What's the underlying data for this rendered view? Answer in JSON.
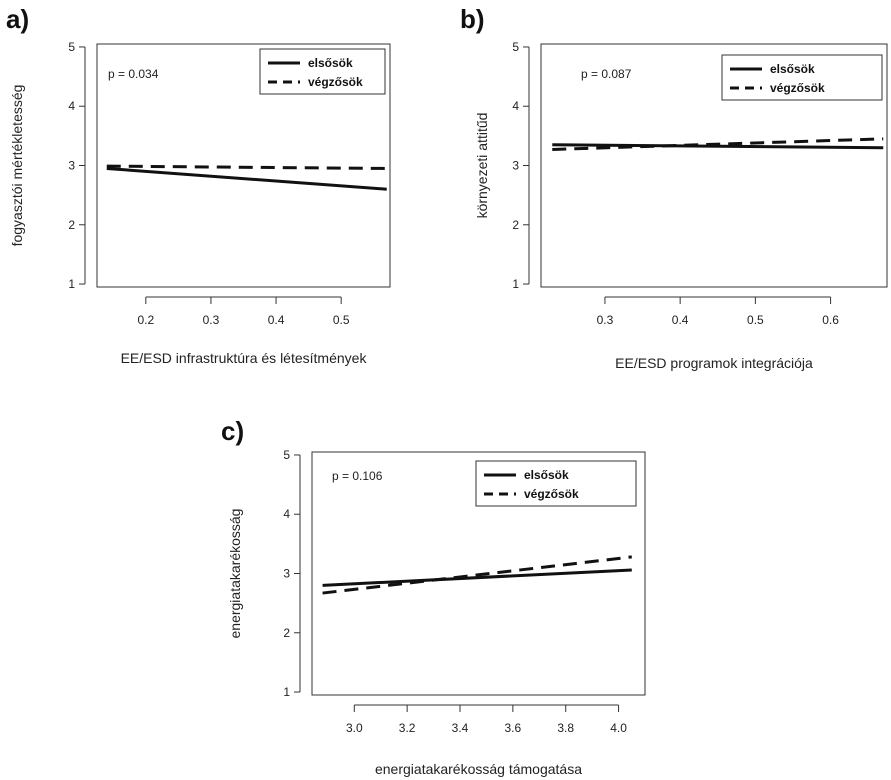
{
  "chart_data": [
    {
      "panel": "a)",
      "type": "line",
      "annotation": "p = 0.034",
      "xlabel": "EE/ESD infrastruktúra és létesítmények",
      "ylabel": "fogyasztói mértékletesség",
      "xlim": [
        0.125,
        0.575
      ],
      "ylim": [
        0.95,
        5.05
      ],
      "xticks": [
        "0.2",
        "0.3",
        "0.4",
        "0.5"
      ],
      "yticks": [
        "1",
        "2",
        "3",
        "4",
        "5"
      ],
      "series": [
        {
          "name": "elsősök",
          "style": "solid",
          "x": [
            0.14,
            0.57
          ],
          "y": [
            2.95,
            2.6
          ]
        },
        {
          "name": "végzősök",
          "style": "dashed",
          "x": [
            0.14,
            0.57
          ],
          "y": [
            2.99,
            2.95
          ]
        }
      ],
      "legend": "top-right"
    },
    {
      "panel": "b)",
      "type": "line",
      "annotation": "p = 0.087",
      "xlabel": "EE/ESD programok integrációja",
      "ylabel": "környezeti attitűd",
      "xlim": [
        0.215,
        0.675
      ],
      "ylim": [
        0.95,
        5.05
      ],
      "xticks": [
        "0.3",
        "0.4",
        "0.5",
        "0.6"
      ],
      "yticks": [
        "1",
        "2",
        "3",
        "4",
        "5"
      ],
      "series": [
        {
          "name": "elsősök",
          "style": "solid",
          "x": [
            0.23,
            0.67
          ],
          "y": [
            3.35,
            3.3
          ]
        },
        {
          "name": "végzősök",
          "style": "dashed",
          "x": [
            0.23,
            0.67
          ],
          "y": [
            3.27,
            3.45
          ]
        }
      ],
      "legend": "top-right"
    },
    {
      "panel": "c)",
      "type": "line",
      "annotation": "p = 0.106",
      "xlabel": "energiatakarékosság támogatása",
      "ylabel": "energiatakarékosság",
      "xlim": [
        2.84,
        4.1
      ],
      "ylim": [
        0.95,
        5.05
      ],
      "xticks": [
        "3.0",
        "3.2",
        "3.4",
        "3.6",
        "3.8",
        "4.0"
      ],
      "yticks": [
        "1",
        "2",
        "3",
        "4",
        "5"
      ],
      "series": [
        {
          "name": "elsősök",
          "style": "solid",
          "x": [
            2.88,
            4.05
          ],
          "y": [
            2.8,
            3.06
          ]
        },
        {
          "name": "végzősök",
          "style": "dashed",
          "x": [
            2.88,
            4.05
          ],
          "y": [
            2.67,
            3.28
          ]
        }
      ],
      "legend": "top-right"
    }
  ]
}
